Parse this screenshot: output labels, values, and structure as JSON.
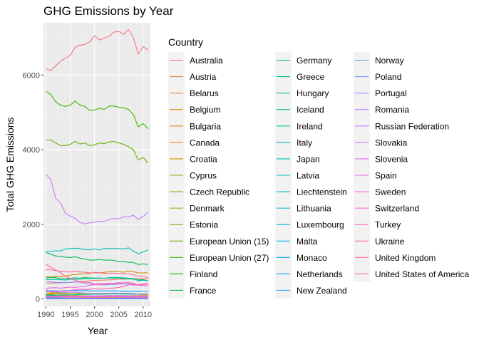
{
  "chart_data": {
    "type": "line",
    "title": "GHG Emissions by Year",
    "xlabel": "Year",
    "ylabel": "Total GHG Emissions",
    "xlim": [
      1989.5,
      2011.5
    ],
    "ylim": [
      -200,
      7400
    ],
    "x_ticks": [
      1990,
      1995,
      2000,
      2005,
      2010
    ],
    "y_ticks": [
      0,
      2000,
      4000,
      6000
    ],
    "grid": true,
    "legend_title": "Country",
    "legend_position": "right",
    "x": [
      1990,
      1991,
      1992,
      1993,
      1994,
      1995,
      1996,
      1997,
      1998,
      1999,
      2000,
      2001,
      2002,
      2003,
      2004,
      2005,
      2006,
      2007,
      2008,
      2009,
      2010,
      2011
    ],
    "series": [
      {
        "name": "Australia",
        "color": "#F8766D",
        "values": [
          420,
          425,
          428,
          432,
          436,
          445,
          455,
          465,
          475,
          488,
          495,
          500,
          505,
          510,
          518,
          525,
          530,
          538,
          545,
          545,
          540,
          545
        ]
      },
      {
        "name": "Austria",
        "color": "#F27D52",
        "values": [
          78,
          80,
          75,
          73,
          73,
          77,
          80,
          80,
          80,
          78,
          80,
          84,
          86,
          92,
          91,
          93,
          90,
          87,
          87,
          80,
          85,
          82
        ]
      },
      {
        "name": "Belarus",
        "color": "#EA8331",
        "values": [
          130,
          125,
          110,
          100,
          90,
          82,
          80,
          80,
          80,
          78,
          77,
          78,
          78,
          80,
          82,
          82,
          85,
          85,
          88,
          88,
          90,
          90
        ]
      },
      {
        "name": "Belgium",
        "color": "#E18A00",
        "values": [
          145,
          150,
          148,
          145,
          150,
          152,
          158,
          150,
          155,
          145,
          148,
          147,
          148,
          148,
          147,
          145,
          140,
          138,
          140,
          125,
          132,
          120
        ]
      },
      {
        "name": "Bulgaria",
        "color": "#D89000",
        "values": [
          110,
          90,
          80,
          78,
          75,
          78,
          78,
          74,
          66,
          60,
          60,
          62,
          60,
          64,
          62,
          62,
          63,
          65,
          65,
          58,
          60,
          65
        ]
      },
      {
        "name": "Canada",
        "color": "#CD9600",
        "values": [
          590,
          585,
          600,
          605,
          620,
          635,
          655,
          665,
          670,
          680,
          715,
          700,
          710,
          730,
          730,
          730,
          715,
          750,
          730,
          695,
          700,
          700
        ]
      },
      {
        "name": "Croatia",
        "color": "#C09B00",
        "values": [
          32,
          26,
          23,
          23,
          22,
          23,
          23,
          25,
          26,
          27,
          27,
          28,
          29,
          30,
          30,
          31,
          30,
          32,
          31,
          29,
          29,
          28
        ]
      },
      {
        "name": "Cyprus",
        "color": "#B3A000",
        "values": [
          6,
          6,
          7,
          7,
          7,
          7,
          8,
          8,
          8,
          9,
          9,
          9,
          9,
          10,
          10,
          10,
          10,
          10,
          11,
          10,
          10,
          10
        ]
      },
      {
        "name": "Czech Republic",
        "color": "#A3A500",
        "values": [
          196,
          180,
          165,
          160,
          150,
          150,
          155,
          150,
          145,
          135,
          145,
          145,
          140,
          143,
          145,
          143,
          145,
          145,
          140,
          135,
          138,
          135
        ]
      },
      {
        "name": "Denmark",
        "color": "#92A900",
        "values": [
          70,
          80,
          74,
          76,
          80,
          77,
          90,
          82,
          78,
          74,
          70,
          71,
          70,
          75,
          69,
          65,
          73,
          68,
          65,
          62,
          63,
          57
        ]
      },
      {
        "name": "Estonia",
        "color": "#7DAE00",
        "values": [
          40,
          37,
          28,
          22,
          23,
          20,
          21,
          21,
          20,
          18,
          17,
          18,
          18,
          20,
          20,
          19,
          18,
          21,
          20,
          16,
          20,
          20
        ]
      },
      {
        "name": "European Union (15)",
        "color": "#64B200",
        "values": [
          4250,
          4260,
          4180,
          4110,
          4110,
          4140,
          4220,
          4150,
          4180,
          4110,
          4130,
          4180,
          4160,
          4210,
          4220,
          4180,
          4140,
          4080,
          4000,
          3720,
          3790,
          3640
        ]
      },
      {
        "name": "European Union (27)",
        "color": "#3DB600",
        "values": [
          5560,
          5480,
          5290,
          5190,
          5160,
          5190,
          5300,
          5200,
          5160,
          5050,
          5060,
          5110,
          5080,
          5170,
          5170,
          5140,
          5120,
          5080,
          4940,
          4610,
          4700,
          4560
        ]
      },
      {
        "name": "Finland",
        "color": "#00B81F",
        "values": [
          71,
          70,
          67,
          69,
          74,
          72,
          78,
          77,
          75,
          74,
          70,
          75,
          76,
          85,
          80,
          69,
          80,
          78,
          70,
          66,
          75,
          67
        ]
      },
      {
        "name": "France",
        "color": "#00BA42",
        "values": [
          560,
          580,
          570,
          545,
          540,
          550,
          565,
          555,
          575,
          560,
          560,
          560,
          555,
          560,
          560,
          560,
          545,
          535,
          530,
          510,
          515,
          490
        ]
      },
      {
        "name": "Germany",
        "color": "#00BC59",
        "values": [
          1250,
          1200,
          1150,
          1140,
          1120,
          1110,
          1130,
          1090,
          1070,
          1040,
          1040,
          1060,
          1040,
          1040,
          1030,
          1000,
          1000,
          980,
          980,
          920,
          940,
          920
        ]
      },
      {
        "name": "Greece",
        "color": "#00BE6C",
        "values": [
          105,
          105,
          107,
          107,
          110,
          110,
          112,
          117,
          122,
          122,
          127,
          128,
          128,
          132,
          132,
          135,
          130,
          132,
          127,
          122,
          118,
          115
        ]
      },
      {
        "name": "Hungary",
        "color": "#00BF7D",
        "values": [
          97,
          88,
          80,
          78,
          75,
          75,
          77,
          75,
          75,
          75,
          75,
          77,
          75,
          79,
          78,
          78,
          77,
          75,
          73,
          67,
          67,
          66
        ]
      },
      {
        "name": "Iceland",
        "color": "#00C08D",
        "values": [
          3,
          3,
          3,
          3,
          3,
          3,
          3,
          3,
          3,
          4,
          4,
          4,
          4,
          4,
          4,
          4,
          5,
          5,
          5,
          5,
          5,
          4
        ]
      },
      {
        "name": "Ireland",
        "color": "#00C09C",
        "values": [
          55,
          56,
          56,
          56,
          57,
          58,
          60,
          62,
          64,
          66,
          68,
          70,
          69,
          68,
          68,
          69,
          69,
          68,
          68,
          62,
          61,
          57
        ]
      },
      {
        "name": "Italy",
        "color": "#00C0AB",
        "values": [
          520,
          520,
          520,
          515,
          505,
          530,
          525,
          530,
          540,
          545,
          550,
          555,
          555,
          570,
          575,
          575,
          565,
          555,
          545,
          490,
          500,
          490
        ]
      },
      {
        "name": "Japan",
        "color": "#00BFB8",
        "values": [
          1270,
          1280,
          1290,
          1285,
          1340,
          1350,
          1360,
          1350,
          1320,
          1320,
          1340,
          1310,
          1350,
          1350,
          1350,
          1350,
          1340,
          1370,
          1280,
          1210,
          1260,
          1310
        ]
      },
      {
        "name": "Latvia",
        "color": "#00BDC4",
        "values": [
          26,
          24,
          19,
          16,
          14,
          12,
          12,
          12,
          11,
          10,
          10,
          10,
          10,
          11,
          11,
          11,
          12,
          12,
          12,
          11,
          12,
          11
        ]
      },
      {
        "name": "Liechtenstein",
        "color": "#00BBCF",
        "values": [
          0,
          0,
          0,
          0,
          0,
          0,
          0,
          0,
          0,
          0,
          0,
          0,
          0,
          0,
          0,
          0,
          0,
          0,
          0,
          0,
          0,
          0
        ]
      },
      {
        "name": "Lithuania",
        "color": "#00B8DA",
        "values": [
          48,
          49,
          33,
          25,
          22,
          21,
          21,
          21,
          22,
          19,
          18,
          20,
          20,
          20,
          20,
          22,
          22,
          24,
          24,
          20,
          21,
          21
        ]
      },
      {
        "name": "Luxembourg",
        "color": "#00B4E4",
        "values": [
          13,
          13,
          13,
          13,
          13,
          10,
          10,
          9,
          8,
          9,
          9,
          10,
          11,
          11,
          13,
          13,
          13,
          12,
          12,
          11,
          12,
          12
        ]
      },
      {
        "name": "Malta",
        "color": "#00AFED",
        "values": [
          2,
          2,
          2,
          2,
          2,
          2,
          2,
          3,
          3,
          3,
          3,
          3,
          3,
          3,
          3,
          3,
          3,
          3,
          3,
          3,
          3,
          3
        ]
      },
      {
        "name": "Monaco",
        "color": "#00A9FF",
        "values": [
          0,
          0,
          0,
          0,
          0,
          0,
          0,
          0,
          0,
          0,
          0,
          0,
          0,
          0,
          0,
          0,
          0,
          0,
          0,
          0,
          0,
          0
        ]
      },
      {
        "name": "Netherlands",
        "color": "#00A5FF",
        "values": [
          210,
          220,
          215,
          215,
          218,
          222,
          230,
          220,
          223,
          213,
          212,
          213,
          214,
          215,
          217,
          210,
          205,
          205,
          205,
          198,
          210,
          195
        ]
      },
      {
        "name": "New Zealand",
        "color": "#35A2FF",
        "values": [
          60,
          60,
          61,
          61,
          62,
          62,
          64,
          66,
          64,
          66,
          68,
          70,
          70,
          72,
          72,
          73,
          74,
          73,
          73,
          71,
          71,
          72
        ]
      },
      {
        "name": "Norway",
        "color": "#619CFF",
        "values": [
          50,
          48,
          47,
          49,
          51,
          50,
          52,
          53,
          54,
          55,
          54,
          55,
          53,
          54,
          54,
          54,
          53,
          55,
          54,
          51,
          54,
          53
        ]
      },
      {
        "name": "Poland",
        "color": "#8494FF",
        "values": [
          460,
          455,
          445,
          440,
          440,
          440,
          455,
          450,
          415,
          400,
          390,
          385,
          375,
          385,
          390,
          395,
          400,
          400,
          395,
          380,
          400,
          400
        ]
      },
      {
        "name": "Portugal",
        "color": "#A08CFF",
        "values": [
          60,
          62,
          66,
          66,
          66,
          72,
          70,
          72,
          75,
          82,
          83,
          83,
          87,
          82,
          85,
          87,
          83,
          80,
          78,
          75,
          71,
          70
        ]
      },
      {
        "name": "Romania",
        "color": "#B983FF",
        "values": [
          250,
          200,
          185,
          178,
          175,
          180,
          185,
          170,
          150,
          135,
          140,
          143,
          145,
          150,
          155,
          150,
          153,
          150,
          146,
          125,
          120,
          125
        ]
      },
      {
        "name": "Russian Federation",
        "color": "#CB7BFF",
        "values": [
          3340,
          3200,
          2700,
          2570,
          2300,
          2220,
          2160,
          2050,
          2010,
          2040,
          2060,
          2080,
          2080,
          2130,
          2150,
          2150,
          2200,
          2200,
          2240,
          2130,
          2210,
          2320
        ]
      },
      {
        "name": "Slovakia",
        "color": "#DB72FB",
        "values": [
          74,
          65,
          58,
          54,
          51,
          51,
          52,
          52,
          50,
          50,
          49,
          49,
          50,
          50,
          50,
          50,
          50,
          49,
          49,
          44,
          46,
          45
        ]
      },
      {
        "name": "Slovenia",
        "color": "#E76BF3",
        "values": [
          19,
          18,
          17,
          17,
          17,
          18,
          19,
          19,
          18,
          18,
          18,
          19,
          20,
          20,
          20,
          20,
          21,
          21,
          21,
          19,
          19,
          19
        ]
      },
      {
        "name": "Spain",
        "color": "#F265E8",
        "values": [
          285,
          295,
          300,
          288,
          302,
          315,
          310,
          325,
          335,
          365,
          380,
          380,
          395,
          405,
          420,
          435,
          430,
          440,
          405,
          365,
          355,
          355
        ]
      },
      {
        "name": "Sweden",
        "color": "#FA62DB",
        "values": [
          72,
          72,
          72,
          72,
          75,
          75,
          78,
          74,
          74,
          70,
          68,
          68,
          69,
          70,
          69,
          67,
          67,
          66,
          64,
          60,
          66,
          61
        ]
      },
      {
        "name": "Switzerland",
        "color": "#FF61CC",
        "values": [
          53,
          54,
          54,
          52,
          51,
          52,
          52,
          51,
          53,
          53,
          52,
          53,
          52,
          53,
          53,
          54,
          54,
          52,
          54,
          52,
          54,
          50
        ]
      },
      {
        "name": "Turkey",
        "color": "#FF62BC",
        "values": [
          188,
          195,
          200,
          210,
          205,
          230,
          250,
          255,
          255,
          255,
          280,
          260,
          270,
          285,
          290,
          310,
          330,
          380,
          370,
          370,
          400,
          420
        ]
      },
      {
        "name": "Ukraine",
        "color": "#FF65AA",
        "values": [
          930,
          850,
          780,
          700,
          600,
          550,
          500,
          450,
          450,
          440,
          400,
          410,
          410,
          420,
          410,
          420,
          430,
          435,
          420,
          370,
          380,
          400
        ]
      },
      {
        "name": "United Kingdom",
        "color": "#FF6A98",
        "values": [
          780,
          785,
          760,
          740,
          730,
          720,
          740,
          720,
          715,
          700,
          700,
          705,
          685,
          690,
          690,
          685,
          680,
          670,
          650,
          600,
          610,
          570
        ]
      },
      {
        "name": "United States of America",
        "color": "#FC717F",
        "values": [
          6170,
          6120,
          6240,
          6370,
          6450,
          6530,
          6740,
          6800,
          6820,
          6890,
          7050,
          6940,
          6990,
          7040,
          7150,
          7170,
          7090,
          7220,
          7000,
          6560,
          6760,
          6670
        ]
      }
    ]
  }
}
